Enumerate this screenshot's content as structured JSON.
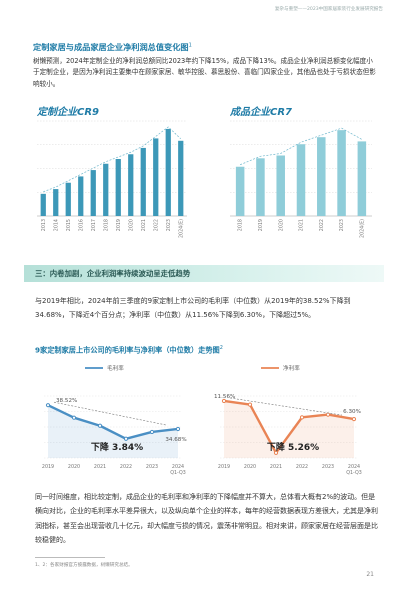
{
  "header": {
    "text": "复杂与重塑——2023中国家居家装行业发展研究报告"
  },
  "section1": {
    "title": "定制家居与成品家居企业净利润总值变化图",
    "title_sup": "1",
    "paragraph": "树懒预测，2024年定制企业的净利润总额同比2023年约下降15%，成品下降13%。成品企业净利润总额变化幅度小于定制企业，是因为净利润主要集中在顾家家居、敏华控股、慕思股份、喜临门四家企业，其他品也处于亏损状态但影响较小。"
  },
  "chart_data": [
    {
      "type": "bar",
      "title": "定制企业CR9",
      "categories": [
        "2013",
        "2014",
        "2015",
        "2016",
        "2017",
        "2018",
        "2019",
        "2020",
        "2021",
        "2022",
        "2023",
        "2024(E)"
      ],
      "values": [
        28,
        34,
        42,
        50,
        58,
        66,
        72,
        78,
        86,
        98,
        110,
        95
      ],
      "ylim": [
        0,
        120
      ],
      "color": "#3c98b8"
    },
    {
      "type": "bar",
      "title": "成品企业CR7",
      "categories": [
        "2018",
        "2019",
        "2020",
        "2021",
        "2022",
        "2023",
        "2024(E)"
      ],
      "values": [
        70,
        82,
        86,
        102,
        112,
        122,
        106
      ],
      "ylim": [
        0,
        135
      ],
      "color": "#8fcdd9"
    },
    {
      "type": "line",
      "title": "毛利率",
      "categories": [
        "2019",
        "2020",
        "2021",
        "2022",
        "2023",
        "2024 Q1-Q3"
      ],
      "series": [
        {
          "name": "毛利率",
          "values": [
            38.52,
            36.5,
            35.2,
            33.1,
            34.2,
            34.68
          ]
        }
      ],
      "data_labels": [
        "38.52%",
        "34.68%"
      ],
      "annotation": "下降 3.84%",
      "color": "#4a8fc4"
    },
    {
      "type": "line",
      "title": "净利率",
      "categories": [
        "2019",
        "2020",
        "2021",
        "2022",
        "2023",
        "2024 Q1-Q3"
      ],
      "series": [
        {
          "name": "净利率",
          "values": [
            11.56,
            10.5,
            -3.5,
            6.8,
            7.6,
            6.3
          ]
        }
      ],
      "data_labels": [
        "11.56%",
        "6.30%"
      ],
      "annotation": "下降 5.26%",
      "color": "#e98455"
    }
  ],
  "section2": {
    "banner": "三：内卷加剧，企业利润率持续波动呈走低趋势",
    "paragraph": "与2019年相比，2024年前三季度的9家定制上市公司的毛利率（中位数）从2019年的38.52%下降到34.68%，下降近4个百分点；净利率（中位数）从11.56%下降到6.30%，下降超过5%。",
    "chart_title": "9家定制家居上市公司的毛利率与净利率（中位数）走势图",
    "chart_title_sup": "2"
  },
  "section3": {
    "paragraph": "同一时间维度，相比较定制，成品企业的毛利率和净利率的下降幅度并不算大，总体看大概有2%的波动。但是横向对比，企业的毛利率水平差异很大，以及纵向单个企业的样本，每年的经营数据表现方差很大，尤其是净利润指标，甚至会出现营收几十亿元，却大幅度亏损的情况，震荡非常明显。相对来讲，顾家家居在经营层面是比较稳健的。"
  },
  "footer": {
    "footnote": "1、2：各家财报官方披露数据，树懒研究总结。",
    "page": "21"
  }
}
